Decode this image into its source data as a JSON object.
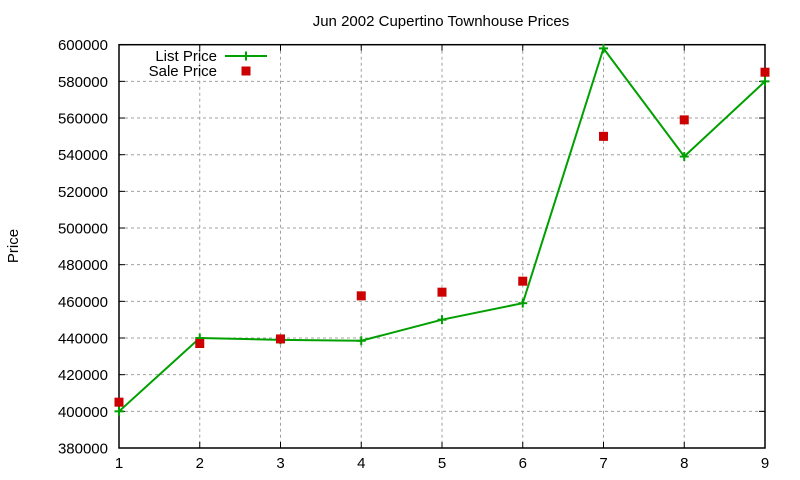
{
  "chart_data": {
    "type": "line",
    "title": "Jun 2002 Cupertino Townhouse Prices",
    "xlabel": "",
    "ylabel": "Price",
    "x": [
      1,
      2,
      3,
      4,
      5,
      6,
      7,
      8,
      9
    ],
    "xlim": [
      1,
      9
    ],
    "ylim": [
      380000,
      600000
    ],
    "xticks": [
      "1",
      "2",
      "3",
      "4",
      "5",
      "6",
      "7",
      "8",
      "9"
    ],
    "yticks": [
      "380000",
      "400000",
      "420000",
      "440000",
      "460000",
      "480000",
      "500000",
      "520000",
      "540000",
      "560000",
      "580000",
      "600000"
    ],
    "grid": true,
    "legend_position": "top-left",
    "series": [
      {
        "name": "List Price",
        "style": "linespoints",
        "marker": "plus",
        "color": "#00a000",
        "values": [
          400000,
          440000,
          439000,
          438500,
          450000,
          459000,
          598000,
          539000,
          580000
        ]
      },
      {
        "name": "Sale Price",
        "style": "points",
        "marker": "square",
        "color": "#cc0000",
        "values": [
          405000,
          437000,
          439500,
          463000,
          465000,
          471000,
          550000,
          559000,
          585000
        ]
      }
    ]
  },
  "legend": {
    "items": [
      {
        "label": "List Price"
      },
      {
        "label": "Sale Price"
      }
    ]
  }
}
